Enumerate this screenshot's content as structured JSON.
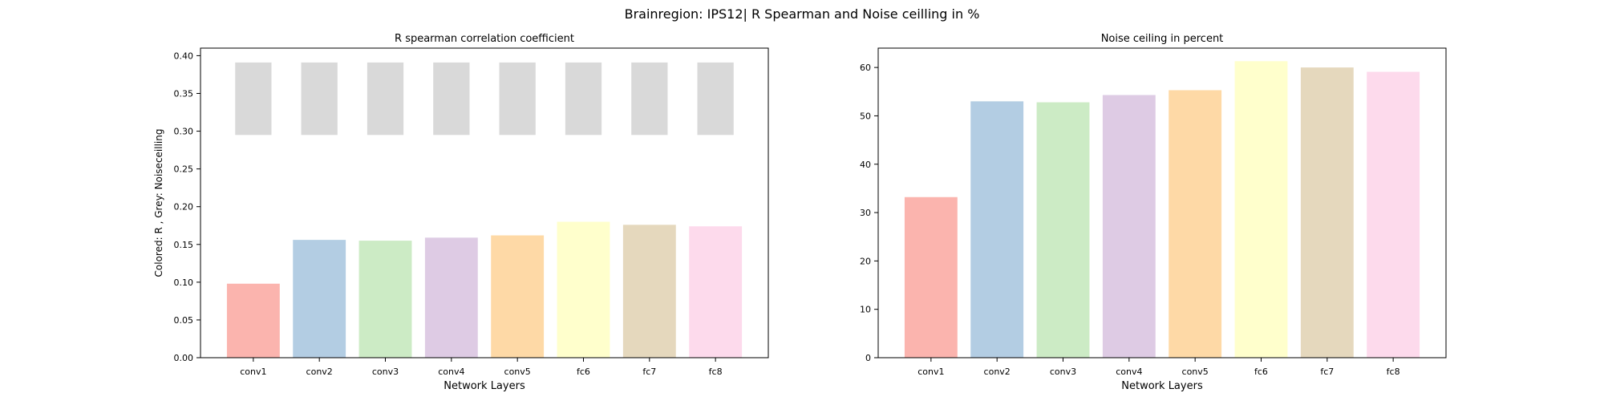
{
  "suptitle": "Brainregion: IPS12| R Spearman and Noise ceilling in %",
  "chart_data": [
    {
      "type": "bar",
      "title": "R spearman correlation coefficient",
      "xlabel": "Network Layers",
      "ylabel": "Colored: R , Grey: Noiseceilling",
      "categories": [
        "conv1",
        "conv2",
        "conv3",
        "conv4",
        "conv5",
        "fc6",
        "fc7",
        "fc8"
      ],
      "ylim": [
        0,
        0.41
      ],
      "yticks": [
        0.0,
        0.05,
        0.1,
        0.15,
        0.2,
        0.25,
        0.3,
        0.35,
        0.4
      ],
      "ytick_labels": [
        "0.00",
        "0.05",
        "0.10",
        "0.15",
        "0.20",
        "0.25",
        "0.30",
        "0.35",
        "0.40"
      ],
      "values": [
        0.098,
        0.156,
        0.155,
        0.159,
        0.162,
        0.18,
        0.176,
        0.174
      ],
      "noise_ceiling": {
        "lower": 0.295,
        "upper": 0.391
      },
      "colors": [
        "#fbb4ae",
        "#b3cde3",
        "#ccebc5",
        "#decbe4",
        "#fed9a6",
        "#ffffcc",
        "#e5d8bd",
        "#fddaec"
      ],
      "noise_color": "#d9d9d9"
    },
    {
      "type": "bar",
      "title": "Noise ceiling in percent",
      "xlabel": "Network Layers",
      "ylabel": "",
      "categories": [
        "conv1",
        "conv2",
        "conv3",
        "conv4",
        "conv5",
        "fc6",
        "fc7",
        "fc8"
      ],
      "ylim": [
        0,
        64
      ],
      "yticks": [
        0,
        10,
        20,
        30,
        40,
        50,
        60
      ],
      "ytick_labels": [
        "0",
        "10",
        "20",
        "30",
        "40",
        "50",
        "60"
      ],
      "values": [
        33.2,
        53.0,
        52.8,
        54.3,
        55.3,
        61.3,
        60.0,
        59.1
      ],
      "colors": [
        "#fbb4ae",
        "#b3cde3",
        "#ccebc5",
        "#decbe4",
        "#fed9a6",
        "#ffffcc",
        "#e5d8bd",
        "#fddaec"
      ]
    }
  ]
}
